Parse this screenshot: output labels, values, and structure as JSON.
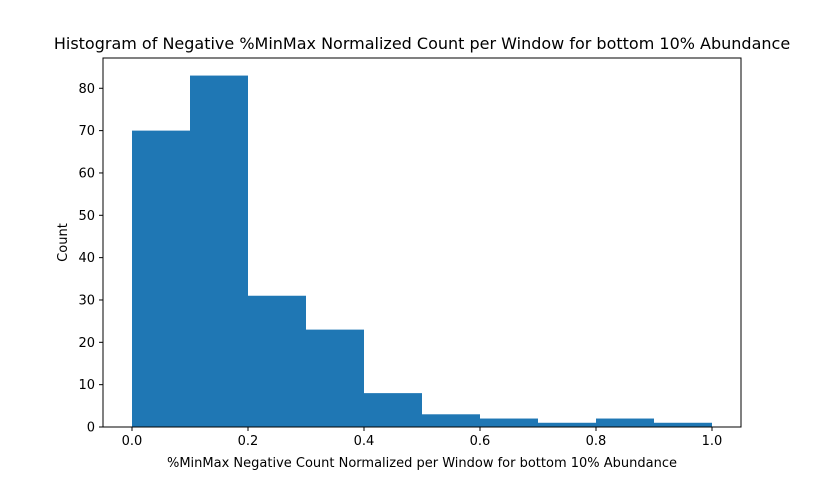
{
  "chart_data": {
    "type": "bar",
    "title": "Histogram of Negative %MinMax Normalized Count per Window for bottom 10% Abundance",
    "xlabel": "%MinMax Negative Count Normalized per Window for bottom 10% Abundance",
    "ylabel": "Count",
    "bin_edges": [
      0.0,
      0.1,
      0.2,
      0.3,
      0.4,
      0.5,
      0.6,
      0.7,
      0.8,
      0.9,
      1.0
    ],
    "values": [
      70,
      83,
      31,
      23,
      8,
      3,
      2,
      1,
      2,
      1
    ],
    "xlim": [
      -0.05,
      1.05
    ],
    "ylim": [
      0,
      87.15
    ],
    "xticks": [
      0.0,
      0.2,
      0.4,
      0.6,
      0.8,
      1.0
    ],
    "xtick_labels": [
      "0.0",
      "0.2",
      "0.4",
      "0.6",
      "0.8",
      "1.0"
    ],
    "yticks": [
      0,
      10,
      20,
      30,
      40,
      50,
      60,
      70,
      80
    ],
    "ytick_labels": [
      "0",
      "10",
      "20",
      "30",
      "40",
      "50",
      "60",
      "70",
      "80"
    ],
    "grid": false,
    "bar_color": "#1f77b4"
  }
}
